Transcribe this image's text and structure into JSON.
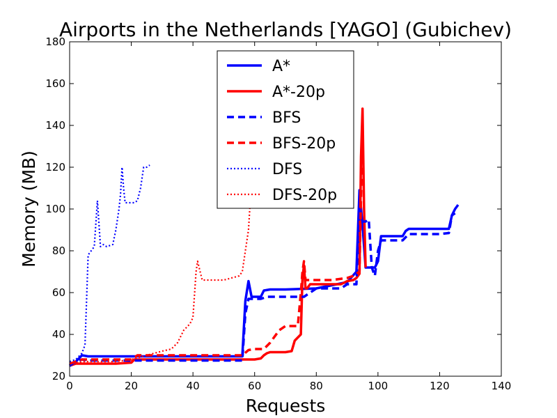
{
  "chart_data": {
    "type": "line",
    "title": "Airports in the Netherlands [YAGO] (Gubichev)",
    "xlabel": "Requests",
    "ylabel": "Memory (MB)",
    "xlim": [
      0,
      140
    ],
    "ylim": [
      20,
      180
    ],
    "xticks": [
      "0",
      "20",
      "40",
      "60",
      "80",
      "100",
      "120",
      "140"
    ],
    "yticks": [
      "20",
      "40",
      "60",
      "80",
      "100",
      "120",
      "140",
      "160",
      "180"
    ],
    "grid": false,
    "legend_position": "top-center",
    "series": [
      {
        "name": "A*",
        "color": "#0000ff",
        "style": "solid",
        "x": [
          0,
          2,
          4,
          6,
          10,
          20,
          30,
          40,
          50,
          56,
          57,
          58,
          59,
          60,
          62,
          63,
          65,
          70,
          80,
          90,
          93,
          94,
          95,
          96,
          98,
          99,
          100,
          101,
          102,
          105,
          108,
          109,
          110,
          115,
          120,
          123,
          124,
          125,
          126
        ],
        "y": [
          25,
          27,
          30,
          29.5,
          29.5,
          29.5,
          29.5,
          29.5,
          29.5,
          29.5,
          56,
          65.5,
          58,
          58,
          58,
          61,
          61.5,
          61.5,
          62,
          65,
          70,
          109,
          92,
          72,
          72,
          72,
          75,
          87,
          87,
          87,
          87,
          89.5,
          90.5,
          90.5,
          90.5,
          90.5,
          97,
          100,
          102
        ]
      },
      {
        "name": "A*-20p",
        "color": "#ff0000",
        "style": "solid",
        "x": [
          0,
          2,
          10,
          15,
          20,
          21,
          22,
          25,
          30,
          40,
          50,
          60,
          62,
          63,
          64,
          65,
          70,
          72,
          73,
          75,
          75.5,
          76,
          76.5,
          77,
          78,
          80,
          85,
          88,
          90,
          92,
          93,
          94,
          94.5,
          95,
          95.5,
          96
        ],
        "y": [
          25,
          26,
          26,
          26,
          26.5,
          28,
          28,
          28,
          28,
          28,
          28,
          28,
          28.5,
          30,
          31,
          31.5,
          31.5,
          32,
          37,
          40,
          67,
          73,
          62,
          62,
          64,
          64,
          64,
          64,
          65.5,
          66,
          67,
          69,
          125,
          148,
          100,
          72
        ]
      },
      {
        "name": "BFS",
        "color": "#0000ff",
        "style": "dashed",
        "x": [
          0,
          2,
          4,
          6,
          10,
          20,
          30,
          40,
          50,
          56,
          57,
          58,
          60,
          62,
          64,
          70,
          75,
          76,
          80,
          88,
          90,
          92,
          93,
          94,
          95,
          96,
          97,
          98,
          99,
          100,
          101,
          102,
          103,
          105,
          108,
          110,
          115,
          120,
          123,
          124,
          125
        ],
        "y": [
          25,
          27,
          28,
          27.5,
          27.5,
          27.5,
          27.5,
          27.5,
          27.5,
          27.5,
          50,
          57,
          57,
          57,
          58,
          58,
          58,
          58,
          62,
          62,
          64,
          64,
          64,
          100,
          94,
          94,
          95,
          72,
          68,
          80,
          85,
          85,
          85,
          85,
          85,
          88,
          88,
          88,
          88.5,
          97,
          98
        ]
      },
      {
        "name": "BFS-20p",
        "color": "#ff0000",
        "style": "dashed",
        "x": [
          0,
          4,
          10,
          20,
          22,
          25,
          30,
          40,
          50,
          56,
          58,
          60,
          63,
          65,
          68,
          70,
          72,
          74,
          75,
          75.5,
          76,
          76.5,
          77,
          78,
          85,
          90,
          92,
          93,
          94,
          95
        ],
        "y": [
          26,
          28,
          28,
          28,
          30,
          30,
          30,
          30,
          30,
          30,
          32.5,
          33,
          33,
          36,
          42,
          44,
          44,
          44,
          60,
          70,
          75,
          66,
          66,
          66,
          66,
          67,
          68,
          69,
          70,
          140
        ]
      },
      {
        "name": "DFS",
        "color": "#0000ff",
        "style": "dotted",
        "x": [
          0,
          2,
          4,
          5,
          6,
          7,
          8,
          9,
          10,
          11,
          12,
          14,
          15,
          16,
          16.5,
          17,
          17.5,
          18,
          19,
          20,
          21,
          22,
          23,
          24,
          25,
          26
        ],
        "y": [
          27,
          28,
          31,
          35,
          78,
          80,
          82,
          104,
          82,
          83,
          82,
          83,
          90,
          100,
          107,
          120,
          110,
          103,
          103,
          103,
          103,
          104,
          110,
          120,
          120,
          121
        ]
      },
      {
        "name": "DFS-20p",
        "color": "#ff0000",
        "style": "dotted",
        "x": [
          0,
          5,
          10,
          15,
          20,
          25,
          30,
          33,
          35,
          37,
          39,
          40,
          41,
          41.5,
          42,
          43,
          45,
          50,
          55,
          56,
          57,
          58,
          58.5
        ],
        "y": [
          26,
          27,
          27,
          27,
          28,
          30,
          32,
          33,
          36,
          42,
          45,
          48,
          70,
          75,
          72,
          66,
          66,
          66,
          68,
          70,
          80,
          90,
          102
        ]
      }
    ]
  }
}
